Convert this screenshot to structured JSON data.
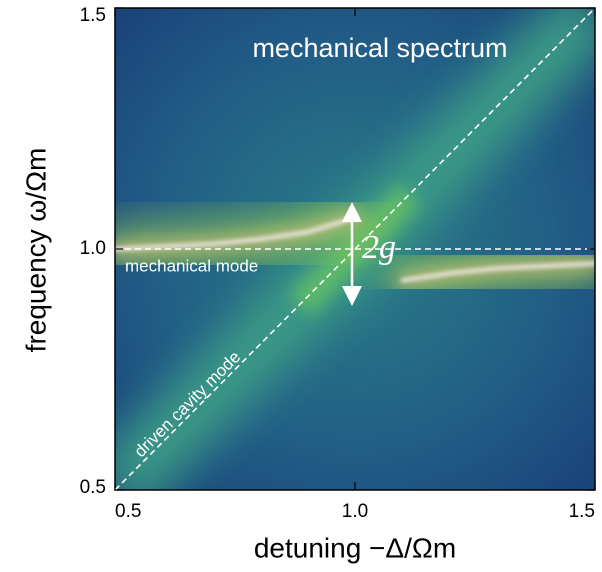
{
  "chart_data": {
    "type": "heatmap",
    "title": "mechanical spectrum",
    "x_label": "detuning  −Δ/Ωm",
    "y_label": "frequency  ω/Ωm",
    "annotations": {
      "horizontal_line": "mechanical mode",
      "diagonal_line": "driven cavity mode",
      "splitting": "2g"
    },
    "x": [
      0.5,
      0.6,
      0.7,
      0.8,
      0.9,
      1.0,
      1.1,
      1.2,
      1.3,
      1.4,
      1.5
    ],
    "series": [
      {
        "color": "#f3e6e6",
        "values": [
          1.0,
          1.005,
          1.01,
          1.02,
          1.035,
          1.065,
          null,
          null,
          null,
          null,
          null
        ]
      },
      {
        "color": "#f3e6e6",
        "values": [
          null,
          null,
          null,
          null,
          null,
          null,
          0.935,
          0.95,
          0.96,
          0.965,
          0.97
        ]
      }
    ],
    "xlim": [
      0.5,
      1.5
    ],
    "ylim": [
      0.5,
      1.5
    ],
    "xticks": [
      0.5,
      {
        "value": 1,
        "label": "1.0"
      },
      1.5
    ],
    "yticks": [
      0.5,
      {
        "value": 1,
        "label": "1.0"
      },
      1.5
    ]
  }
}
